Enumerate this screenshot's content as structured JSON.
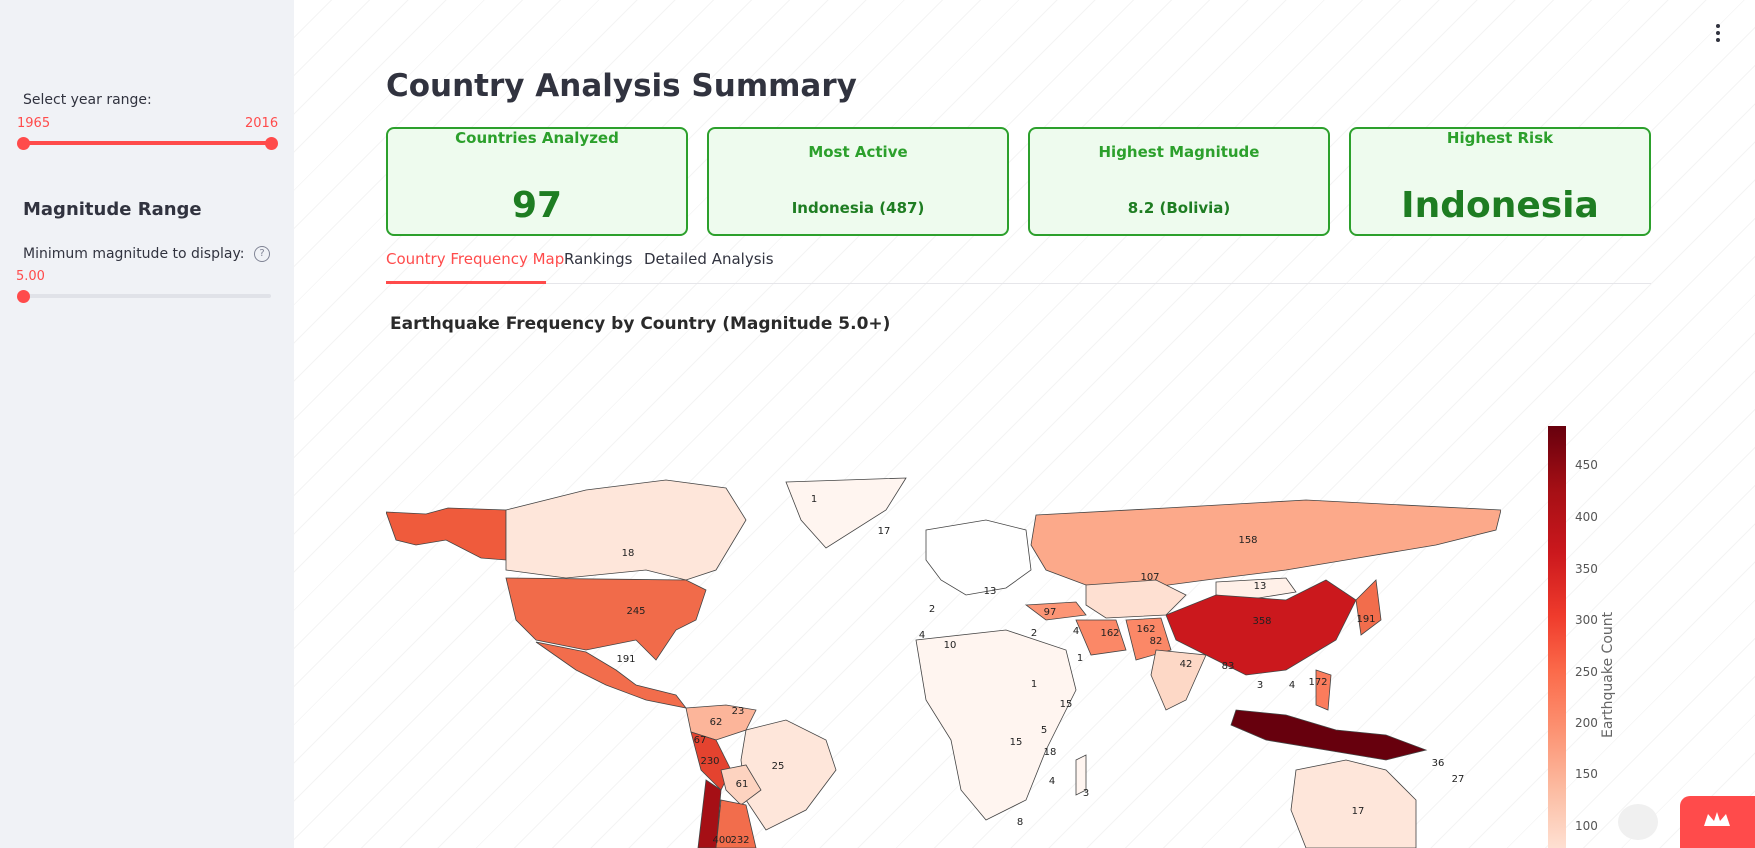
{
  "sidebar": {
    "year_range_label": "Select year range:",
    "year_min": "1965",
    "year_max": "2016",
    "magnitude_heading": "Magnitude Range",
    "min_magnitude_label": "Minimum magnitude to display:",
    "min_magnitude_value": "5.00",
    "help_glyph": "?"
  },
  "header": {
    "title": "Country Analysis Summary"
  },
  "metrics": [
    {
      "label": "Countries Analyzed",
      "value": "97"
    },
    {
      "label": "Most Active",
      "value": "Indonesia (487)"
    },
    {
      "label": "Highest Magnitude",
      "value": "8.2 (Bolivia)"
    },
    {
      "label": "Highest Risk",
      "value": "Indonesia"
    }
  ],
  "tabs": [
    {
      "label": "Country Frequency Map",
      "active": true
    },
    {
      "label": "Rankings",
      "active": false
    },
    {
      "label": "Detailed Analysis",
      "active": false
    }
  ],
  "chart_title": "Earthquake Frequency by Country (Magnitude 5.0+)",
  "colorbar": {
    "title": "Earthquake Count",
    "ticks": [
      "450",
      "400",
      "350",
      "300",
      "250",
      "200",
      "150",
      "100"
    ],
    "colors": [
      "#67000d",
      "#cb181d",
      "#fb6a4a",
      "#fee0d2"
    ]
  },
  "map_labels": {
    "greenland": "1",
    "canada": "18",
    "usa": "245",
    "mexico": "191",
    "russia": "158",
    "china": "358",
    "mongolia": "13",
    "kazakhstan": "107",
    "iran": "162",
    "afghanistan": "162",
    "pakistan": "82",
    "india": "42",
    "myanmar": "83",
    "philippines": "172",
    "japan": "191",
    "peru": "230",
    "chile": "400",
    "argentina": "232",
    "brazil": "25",
    "bolivia": "61",
    "colombia": "62",
    "venezuela": "23",
    "ecuador": "67",
    "australia": "17",
    "algeria": "10",
    "libya": "2",
    "egypt": "1",
    "sudan": "1",
    "ethiopia": "15",
    "kenya": "5",
    "tanzania": "18",
    "drc": "15",
    "madagascar": "3",
    "turkey": "97",
    "iceland": "17",
    "png": "36",
    "vanuatu": "27",
    "morocco": "4",
    "spain": "2",
    "italy": "13",
    "saudi": "4",
    "mozambique": "4",
    "southafrica": "8",
    "taiwan": "4",
    "vietnam": "3"
  }
}
